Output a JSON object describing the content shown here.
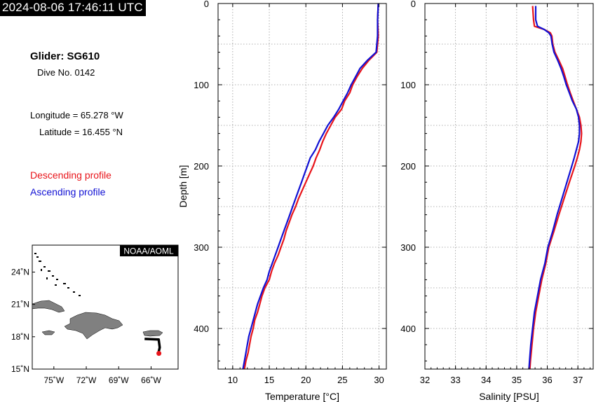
{
  "timestamp": "2024-08-06 17:46:11 UTC",
  "glider": {
    "name_line": "Glider: SG610",
    "dive_line": "Dive No. 0142",
    "longitude_line": "Longitude = 65.278 °W",
    "latitude_line": "Latitude = 16.455 °N"
  },
  "legend": {
    "descending": "Descending profile",
    "ascending": "Ascending profile"
  },
  "colors": {
    "descending": "#e8141a",
    "ascending": "#1111d4",
    "land": "#808080"
  },
  "map": {
    "badge": "NOAA/AOML",
    "lat_ticks": [
      "24˚N",
      "21˚N",
      "18˚N",
      "15˚N"
    ],
    "lon_ticks": [
      "75˚W",
      "72˚W",
      "69˚W",
      "66˚W"
    ],
    "lat_range": [
      15,
      26.5
    ],
    "lon_range": [
      -77,
      -63.5
    ],
    "track": [
      [
        -66.6,
        17.8
      ],
      [
        -65.3,
        17.75
      ],
      [
        -65.2,
        17.0
      ],
      [
        -65.3,
        16.6
      ]
    ],
    "position": [
      -65.278,
      16.455
    ]
  },
  "chart_data": [
    {
      "type": "line",
      "xlabel": "Temperature [°C]",
      "ylabel": "Depth [m]",
      "xlim": [
        8,
        31
      ],
      "ylim": [
        450,
        0
      ],
      "x_ticks": [
        10,
        15,
        20,
        25,
        30
      ],
      "y_ticks": [
        0,
        100,
        200,
        300,
        400
      ],
      "grid": true,
      "series": [
        {
          "name": "Descending profile",
          "color": "#e8141a",
          "depth": [
            0,
            20,
            40,
            60,
            70,
            80,
            90,
            100,
            110,
            120,
            130,
            140,
            150,
            160,
            170,
            180,
            190,
            200,
            210,
            220,
            230,
            240,
            250,
            260,
            270,
            280,
            290,
            300,
            310,
            320,
            330,
            340,
            350,
            360,
            370,
            380,
            390,
            400,
            410,
            420,
            430,
            440,
            450
          ],
          "values": [
            29.9,
            29.8,
            29.9,
            29.7,
            28.6,
            27.7,
            27.0,
            26.4,
            26.0,
            25.3,
            24.9,
            24.0,
            23.4,
            22.8,
            22.3,
            21.9,
            21.4,
            21.0,
            20.5,
            20.0,
            19.5,
            19.0,
            18.6,
            18.1,
            17.7,
            17.3,
            17.0,
            16.6,
            16.2,
            15.7,
            15.3,
            15.0,
            14.4,
            14.0,
            13.7,
            13.4,
            13.0,
            12.8,
            12.5,
            12.3,
            12.1,
            11.8,
            11.6
          ]
        },
        {
          "name": "Ascending profile",
          "color": "#1111d4",
          "depth": [
            0,
            20,
            40,
            60,
            70,
            80,
            90,
            100,
            110,
            120,
            130,
            140,
            150,
            160,
            170,
            180,
            190,
            200,
            210,
            220,
            230,
            240,
            250,
            260,
            270,
            280,
            290,
            300,
            310,
            320,
            330,
            340,
            350,
            360,
            370,
            380,
            390,
            400,
            410,
            420,
            430,
            440,
            450
          ],
          "values": [
            29.9,
            29.8,
            29.8,
            29.6,
            28.4,
            27.4,
            26.8,
            26.2,
            25.7,
            25.1,
            24.5,
            23.8,
            23.0,
            22.4,
            21.8,
            21.3,
            20.6,
            20.2,
            19.8,
            19.4,
            19.0,
            18.6,
            18.2,
            17.8,
            17.4,
            17.0,
            16.6,
            16.2,
            15.8,
            15.4,
            15.0,
            14.7,
            14.2,
            13.8,
            13.4,
            13.1,
            12.8,
            12.5,
            12.2,
            12.0,
            11.8,
            11.6,
            11.4
          ]
        }
      ]
    },
    {
      "type": "line",
      "xlabel": "Salinity [PSU]",
      "ylabel": "",
      "xlim": [
        32,
        37.5
      ],
      "ylim": [
        450,
        0
      ],
      "x_ticks": [
        32,
        33,
        34,
        35,
        36,
        37
      ],
      "y_ticks": [
        0,
        100,
        200,
        300,
        400
      ],
      "grid": true,
      "series": [
        {
          "name": "Descending profile",
          "color": "#e8141a",
          "depth": [
            3,
            20,
            28,
            32,
            36,
            40,
            50,
            60,
            70,
            80,
            90,
            100,
            110,
            120,
            130,
            140,
            150,
            160,
            170,
            180,
            190,
            200,
            220,
            240,
            260,
            280,
            300,
            320,
            340,
            360,
            380,
            400,
            420,
            440,
            450
          ],
          "values": [
            35.52,
            35.55,
            35.58,
            35.9,
            36.1,
            36.15,
            36.18,
            36.25,
            36.38,
            36.5,
            36.58,
            36.66,
            36.75,
            36.85,
            36.95,
            37.05,
            37.1,
            37.12,
            37.1,
            37.05,
            36.98,
            36.9,
            36.72,
            36.55,
            36.38,
            36.22,
            36.05,
            35.95,
            35.82,
            35.72,
            35.62,
            35.55,
            35.5,
            35.45,
            35.43
          ]
        },
        {
          "name": "Ascending profile",
          "color": "#1111d4",
          "depth": [
            3,
            20,
            28,
            32,
            36,
            40,
            50,
            60,
            70,
            80,
            90,
            100,
            110,
            120,
            130,
            140,
            150,
            160,
            170,
            180,
            190,
            200,
            220,
            240,
            260,
            280,
            300,
            320,
            340,
            360,
            380,
            400,
            420,
            440,
            450
          ],
          "values": [
            35.62,
            35.62,
            35.68,
            35.9,
            36.05,
            36.12,
            36.16,
            36.22,
            36.34,
            36.45,
            36.54,
            36.62,
            36.72,
            36.82,
            36.95,
            37.02,
            37.05,
            37.05,
            37.02,
            36.95,
            36.88,
            36.8,
            36.64,
            36.48,
            36.32,
            36.18,
            36.02,
            35.92,
            35.78,
            35.68,
            35.58,
            35.52,
            35.46,
            35.42,
            35.4
          ]
        }
      ]
    }
  ]
}
